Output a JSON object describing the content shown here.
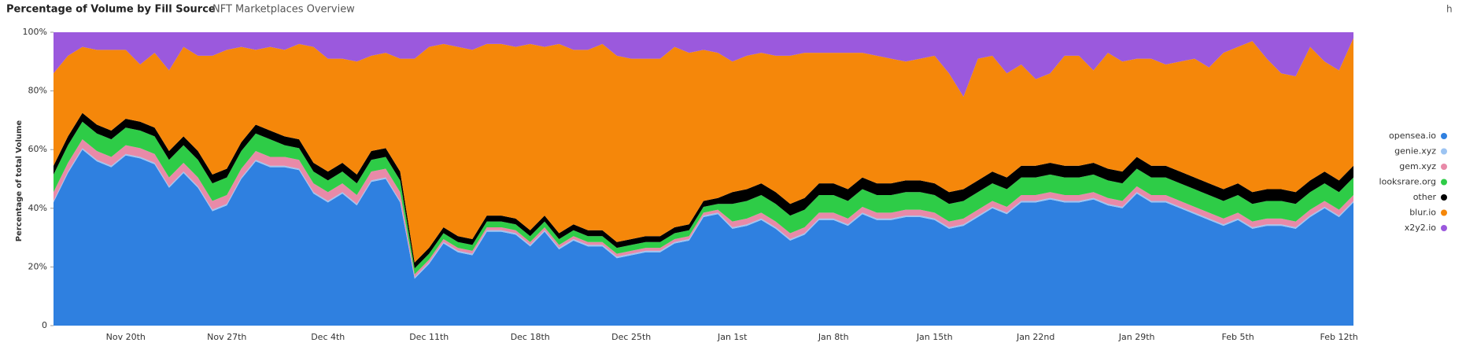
{
  "chart_data": {
    "type": "stacked_area",
    "title": "Percentage of Volume by Fill Source",
    "subtitle": "NFT Marketplaces Overview",
    "corner_label": "h",
    "y_label": "Percentage of total Volume",
    "ylim": [
      0,
      100
    ],
    "yticks": [
      0,
      {
        "value": 20,
        "label": "20%"
      },
      {
        "value": 40,
        "label": "40%"
      },
      {
        "value": 60,
        "label": "60%"
      },
      {
        "value": 80,
        "label": "80%"
      },
      {
        "value": 100,
        "label": "100%"
      }
    ],
    "grid": false,
    "legend": "right",
    "categories": [
      null,
      null,
      null,
      null,
      null,
      "Nov 20th",
      null,
      null,
      null,
      null,
      null,
      null,
      "Nov 27th",
      null,
      null,
      null,
      null,
      null,
      null,
      "Dec 4th",
      null,
      null,
      null,
      null,
      null,
      null,
      "Dec 11th",
      null,
      null,
      null,
      null,
      null,
      null,
      "Dec 18th",
      null,
      null,
      null,
      null,
      null,
      null,
      "Dec 25th",
      null,
      null,
      null,
      null,
      null,
      null,
      "Jan 1st",
      null,
      null,
      null,
      null,
      null,
      null,
      "Jan 8th",
      null,
      null,
      null,
      null,
      null,
      null,
      "Jan 15th",
      null,
      null,
      null,
      null,
      null,
      null,
      "Jan 22nd",
      null,
      null,
      null,
      null,
      null,
      null,
      "Jan 29th",
      null,
      null,
      null,
      null,
      null,
      null,
      "Feb 5th",
      null,
      null,
      null,
      null,
      null,
      null,
      "Feb 12th",
      null
    ],
    "series": [
      {
        "name": "opensea.io",
        "color": "#2f80e0",
        "values": [
          42,
          52,
          60,
          56,
          54,
          58,
          57,
          55,
          47,
          52,
          47,
          39,
          41,
          50,
          56,
          54,
          54,
          53,
          45,
          42,
          45,
          41,
          49,
          50,
          42,
          16,
          21,
          28,
          25,
          24,
          32,
          32,
          31,
          27,
          32,
          26,
          29,
          27,
          27,
          23,
          24,
          25,
          25,
          28,
          29,
          37,
          38,
          33,
          34,
          36,
          33,
          29,
          31,
          36,
          36,
          34,
          38,
          36,
          36,
          37,
          37,
          36,
          33,
          34,
          37,
          40,
          38,
          42,
          42,
          43,
          42,
          42,
          43,
          41,
          40,
          45,
          42,
          42,
          40,
          38,
          36,
          34,
          36,
          33,
          34,
          34,
          33,
          37,
          40,
          37,
          42
        ]
      },
      {
        "name": "genie.xyz",
        "color": "#9cc4f2",
        "values": [
          0.5,
          0.5,
          0.5,
          0.5,
          0.5,
          0.5,
          0.5,
          0.5,
          0.5,
          0.5,
          0.5,
          0.5,
          0.5,
          0.5,
          0.5,
          0.5,
          0.5,
          0.5,
          0.5,
          0.5,
          0.5,
          0.5,
          0.5,
          0.5,
          0.5,
          0.5,
          0.5,
          0.5,
          0.5,
          0.5,
          0.5,
          0.5,
          0.5,
          0.5,
          0.5,
          0.5,
          0.5,
          0.5,
          0.5,
          0.5,
          0.5,
          0.5,
          0.5,
          0.5,
          0.5,
          0.5,
          0.5,
          0.5,
          0.5,
          0.5,
          0.5,
          0.5,
          0.5,
          0.5,
          0.5,
          0.5,
          0.5,
          0.5,
          0.5,
          0.5,
          0.5,
          0.5,
          0.5,
          0.5,
          0.5,
          0.5,
          0.5,
          0.5,
          0.5,
          0.5,
          0.5,
          0.5,
          0.5,
          0.5,
          0.5,
          0.5,
          0.5,
          0.5,
          0.5,
          0.5,
          0.5,
          0.5,
          0.5,
          0.5,
          0.5,
          0.5,
          0.5,
          0.5,
          0.5,
          0.5,
          0.5
        ]
      },
      {
        "name": "gem.xyz",
        "color": "#e88aa8",
        "values": [
          3,
          3,
          3,
          3,
          3,
          3,
          3,
          3,
          3,
          3,
          3,
          3,
          3,
          3,
          3,
          3,
          3,
          3,
          3,
          3,
          3,
          3,
          3,
          3,
          3,
          1,
          1,
          1,
          1,
          1,
          1,
          1,
          1,
          1,
          1,
          1,
          1,
          1,
          1,
          1,
          1,
          1,
          1,
          1,
          1,
          1,
          1,
          2,
          2,
          2,
          2,
          2,
          2,
          2,
          2,
          2,
          2,
          2,
          2,
          2,
          2,
          2,
          2,
          2,
          2,
          2,
          2,
          2,
          2,
          2,
          2,
          2,
          2,
          2,
          2,
          2,
          2,
          2,
          2,
          2,
          2,
          2,
          2,
          2,
          2,
          2,
          2,
          2,
          2,
          2,
          2
        ]
      },
      {
        "name": "looksrare.org",
        "color": "#2ecc47",
        "values": [
          6,
          6,
          6,
          6,
          6,
          6,
          6,
          6,
          6,
          6,
          6,
          6,
          6,
          6,
          6,
          6,
          4,
          4,
          4,
          4,
          4,
          4,
          4,
          4,
          4,
          2,
          2,
          2,
          2,
          2,
          2,
          2,
          2,
          2,
          2,
          2,
          2,
          2,
          2,
          2,
          2,
          2,
          2,
          2,
          2,
          2,
          2,
          6,
          6,
          6,
          6,
          6,
          6,
          6,
          6,
          6,
          6,
          6,
          6,
          6,
          6,
          6,
          6,
          6,
          6,
          6,
          6,
          6,
          6,
          6,
          6,
          6,
          6,
          6,
          6,
          6,
          6,
          6,
          6,
          6,
          6,
          6,
          6,
          6,
          6,
          6,
          6,
          6,
          6,
          6,
          6
        ]
      },
      {
        "name": "other",
        "color": "#000000",
        "values": [
          3,
          3,
          3,
          3,
          3,
          3,
          3,
          3,
          3,
          3,
          3,
          3,
          3,
          3,
          3,
          3,
          3,
          3,
          3,
          3,
          3,
          3,
          3,
          3,
          3,
          2,
          2,
          2,
          2,
          2,
          2,
          2,
          2,
          2,
          2,
          2,
          2,
          2,
          2,
          2,
          2,
          2,
          2,
          2,
          2,
          2,
          2,
          4,
          4,
          4,
          4,
          4,
          4,
          4,
          4,
          4,
          4,
          4,
          4,
          4,
          4,
          4,
          4,
          4,
          4,
          4,
          4,
          4,
          4,
          4,
          4,
          4,
          4,
          4,
          4,
          4,
          4,
          4,
          4,
          4,
          4,
          4,
          4,
          4,
          4,
          4,
          4,
          4,
          4,
          4,
          4
        ]
      },
      {
        "name": "blur.io",
        "color": "#f5870a",
        "values": [
          31.5,
          27.5,
          22.5,
          25.5,
          27.5,
          23.5,
          19.5,
          25.5,
          27.5,
          30.5,
          32.5,
          40.5,
          40.5,
          32.5,
          25.5,
          28.5,
          29.5,
          32.5,
          39.5,
          38.5,
          35.5,
          38.5,
          32.5,
          32.5,
          38.5,
          69.5,
          68.5,
          62.5,
          64.5,
          64.5,
          58.5,
          58.5,
          58.5,
          63.5,
          57.5,
          64.5,
          59.5,
          61.5,
          63.5,
          63.5,
          61.5,
          60.5,
          60.5,
          61.5,
          58.5,
          51.5,
          49.5,
          44.5,
          45.5,
          44.5,
          46.5,
          50.5,
          49.5,
          44.5,
          44.5,
          46.5,
          42.5,
          43.5,
          42.5,
          40.5,
          41.5,
          43.5,
          40.5,
          31.5,
          41.5,
          39.5,
          35.5,
          34.5,
          29.5,
          30.5,
          37.5,
          37.5,
          31.5,
          39.5,
          37.5,
          33.5,
          36.5,
          34.5,
          37.5,
          40.5,
          39.5,
          46.5,
          46.5,
          51.5,
          44.5,
          39.5,
          39.5,
          45.5,
          37.5,
          37.5,
          43.5
        ]
      },
      {
        "name": "x2y2.io",
        "color": "#9b59dd",
        "values": [
          14,
          8,
          5,
          6,
          6,
          6,
          11,
          7,
          13,
          5,
          8,
          8,
          6,
          5,
          6,
          5,
          6,
          4,
          5,
          9,
          9,
          10,
          8,
          7,
          9,
          9,
          5,
          4,
          5,
          6,
          4,
          4,
          5,
          4,
          5,
          4,
          6,
          6,
          4,
          8,
          9,
          9,
          9,
          5,
          7,
          6,
          7,
          10,
          8,
          7,
          8,
          8,
          7,
          7,
          7,
          7,
          7,
          8,
          9,
          10,
          9,
          8,
          14,
          22,
          9,
          8,
          14,
          11,
          16,
          14,
          8,
          8,
          13,
          7,
          10,
          9,
          9,
          11,
          10,
          9,
          12,
          7,
          5,
          3,
          9,
          14,
          15,
          5,
          10,
          13,
          2
        ]
      }
    ]
  }
}
